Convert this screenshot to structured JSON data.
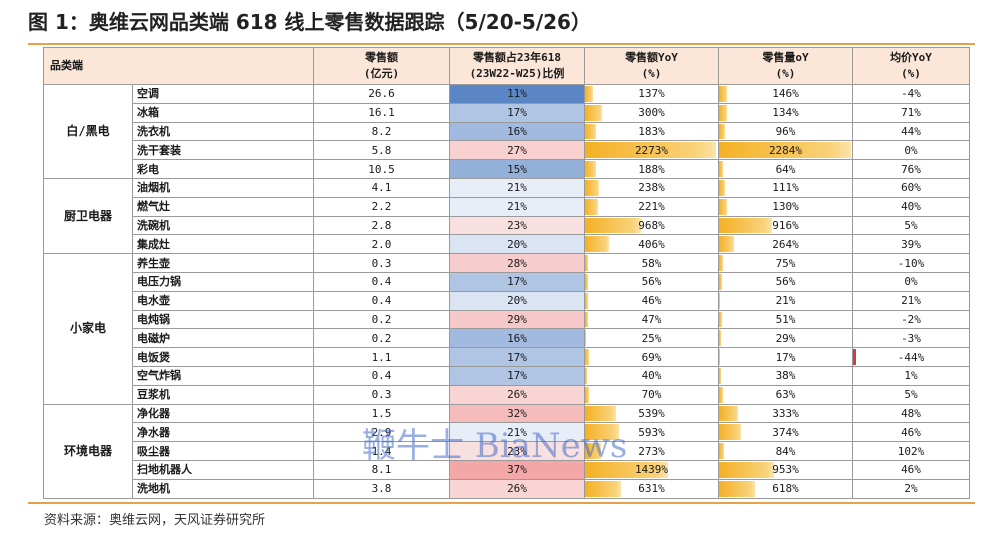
{
  "title": "图 1：奥维云网品类端 618 线上零售数据跟踪（5/20-5/26）",
  "headers": {
    "category": "品类端",
    "sales": [
      "零售额",
      "(亿元)"
    ],
    "share": [
      "零售额占23年618",
      "(23W22-W25)比例"
    ],
    "sales_yoy": [
      "零售额YoY",
      "(%)"
    ],
    "volume_yoy": [
      "零售量oY",
      "(%)"
    ],
    "price_yoy": [
      "均价YoY",
      "(%)"
    ]
  },
  "colors": {
    "header_bg": "#fbe6d8",
    "rule": "#e8a04a",
    "share_low": "#5b86c5",
    "share_high": "#f4a7a7",
    "yoy_bar": "#f4b024",
    "negative_bar": "#d9363e"
  },
  "groups": [
    {
      "name": "白/黑电",
      "rows": [
        {
          "item": "空调",
          "sales": "26.6",
          "share": "11%",
          "sales_yoy": "137%",
          "volume_yoy": "146%",
          "price_yoy": "-4%",
          "share_v": 11,
          "sy_v": 137,
          "vy_v": 146,
          "py_v": -4
        },
        {
          "item": "冰箱",
          "sales": "16.1",
          "share": "17%",
          "sales_yoy": "300%",
          "volume_yoy": "134%",
          "price_yoy": "71%",
          "share_v": 17,
          "sy_v": 300,
          "vy_v": 134,
          "py_v": 71
        },
        {
          "item": "洗衣机",
          "sales": "8.2",
          "share": "16%",
          "sales_yoy": "183%",
          "volume_yoy": "96%",
          "price_yoy": "44%",
          "share_v": 16,
          "sy_v": 183,
          "vy_v": 96,
          "py_v": 44
        },
        {
          "item": "洗干套装",
          "sales": "5.8",
          "share": "27%",
          "sales_yoy": "2273%",
          "volume_yoy": "2284%",
          "price_yoy": "0%",
          "share_v": 27,
          "sy_v": 2273,
          "vy_v": 2284,
          "py_v": 0
        },
        {
          "item": "彩电",
          "sales": "10.5",
          "share": "15%",
          "sales_yoy": "188%",
          "volume_yoy": "64%",
          "price_yoy": "76%",
          "share_v": 15,
          "sy_v": 188,
          "vy_v": 64,
          "py_v": 76
        }
      ]
    },
    {
      "name": "厨卫电器",
      "rows": [
        {
          "item": "油烟机",
          "sales": "4.1",
          "share": "21%",
          "sales_yoy": "238%",
          "volume_yoy": "111%",
          "price_yoy": "60%",
          "share_v": 21,
          "sy_v": 238,
          "vy_v": 111,
          "py_v": 60
        },
        {
          "item": "燃气灶",
          "sales": "2.2",
          "share": "21%",
          "sales_yoy": "221%",
          "volume_yoy": "130%",
          "price_yoy": "40%",
          "share_v": 21,
          "sy_v": 221,
          "vy_v": 130,
          "py_v": 40
        },
        {
          "item": "洗碗机",
          "sales": "2.8",
          "share": "23%",
          "sales_yoy": "968%",
          "volume_yoy": "916%",
          "price_yoy": "5%",
          "share_v": 23,
          "sy_v": 968,
          "vy_v": 916,
          "py_v": 5
        },
        {
          "item": "集成灶",
          "sales": "2.0",
          "share": "20%",
          "sales_yoy": "406%",
          "volume_yoy": "264%",
          "price_yoy": "39%",
          "share_v": 20,
          "sy_v": 406,
          "vy_v": 264,
          "py_v": 39
        }
      ]
    },
    {
      "name": "小家电",
      "rows": [
        {
          "item": "养生壶",
          "sales": "0.3",
          "share": "28%",
          "sales_yoy": "58%",
          "volume_yoy": "75%",
          "price_yoy": "-10%",
          "share_v": 28,
          "sy_v": 58,
          "vy_v": 75,
          "py_v": -10
        },
        {
          "item": "电压力锅",
          "sales": "0.4",
          "share": "17%",
          "sales_yoy": "56%",
          "volume_yoy": "56%",
          "price_yoy": "0%",
          "share_v": 17,
          "sy_v": 56,
          "vy_v": 56,
          "py_v": 0
        },
        {
          "item": "电水壶",
          "sales": "0.4",
          "share": "20%",
          "sales_yoy": "46%",
          "volume_yoy": "21%",
          "price_yoy": "21%",
          "share_v": 20,
          "sy_v": 46,
          "vy_v": 21,
          "py_v": 21
        },
        {
          "item": "电炖锅",
          "sales": "0.2",
          "share": "29%",
          "sales_yoy": "47%",
          "volume_yoy": "51%",
          "price_yoy": "-2%",
          "share_v": 29,
          "sy_v": 47,
          "vy_v": 51,
          "py_v": -2
        },
        {
          "item": "电磁炉",
          "sales": "0.2",
          "share": "16%",
          "sales_yoy": "25%",
          "volume_yoy": "29%",
          "price_yoy": "-3%",
          "share_v": 16,
          "sy_v": 25,
          "vy_v": 29,
          "py_v": -3
        },
        {
          "item": "电饭煲",
          "sales": "1.1",
          "share": "17%",
          "sales_yoy": "69%",
          "volume_yoy": "17%",
          "price_yoy": "-44%",
          "share_v": 17,
          "sy_v": 69,
          "vy_v": 17,
          "py_v": -44
        },
        {
          "item": "空气炸锅",
          "sales": "0.4",
          "share": "17%",
          "sales_yoy": "40%",
          "volume_yoy": "38%",
          "price_yoy": "1%",
          "share_v": 17,
          "sy_v": 40,
          "vy_v": 38,
          "py_v": 1
        },
        {
          "item": "豆浆机",
          "sales": "0.3",
          "share": "26%",
          "sales_yoy": "70%",
          "volume_yoy": "63%",
          "price_yoy": "5%",
          "share_v": 26,
          "sy_v": 70,
          "vy_v": 63,
          "py_v": 5
        }
      ]
    },
    {
      "name": "环境电器",
      "rows": [
        {
          "item": "净化器",
          "sales": "1.5",
          "share": "32%",
          "sales_yoy": "539%",
          "volume_yoy": "333%",
          "price_yoy": "48%",
          "share_v": 32,
          "sy_v": 539,
          "vy_v": 333,
          "py_v": 48
        },
        {
          "item": "净水器",
          "sales": "2.9",
          "share": "21%",
          "sales_yoy": "593%",
          "volume_yoy": "374%",
          "price_yoy": "46%",
          "share_v": 21,
          "sy_v": 593,
          "vy_v": 374,
          "py_v": 46
        },
        {
          "item": "吸尘器",
          "sales": "1.4",
          "share": "23%",
          "sales_yoy": "273%",
          "volume_yoy": "84%",
          "price_yoy": "102%",
          "share_v": 23,
          "sy_v": 273,
          "vy_v": 84,
          "py_v": 102
        },
        {
          "item": "扫地机器人",
          "sales": "8.1",
          "share": "37%",
          "sales_yoy": "1439%",
          "volume_yoy": "953%",
          "price_yoy": "46%",
          "share_v": 37,
          "sy_v": 1439,
          "vy_v": 953,
          "py_v": 46
        },
        {
          "item": "洗地机",
          "sales": "3.8",
          "share": "26%",
          "sales_yoy": "631%",
          "volume_yoy": "618%",
          "price_yoy": "2%",
          "share_v": 26,
          "sy_v": 631,
          "vy_v": 618,
          "py_v": 2
        }
      ]
    }
  ],
  "source": "资料来源：奥维云网，天风证券研究所",
  "watermark": "鞭牛士 BiaNews"
}
